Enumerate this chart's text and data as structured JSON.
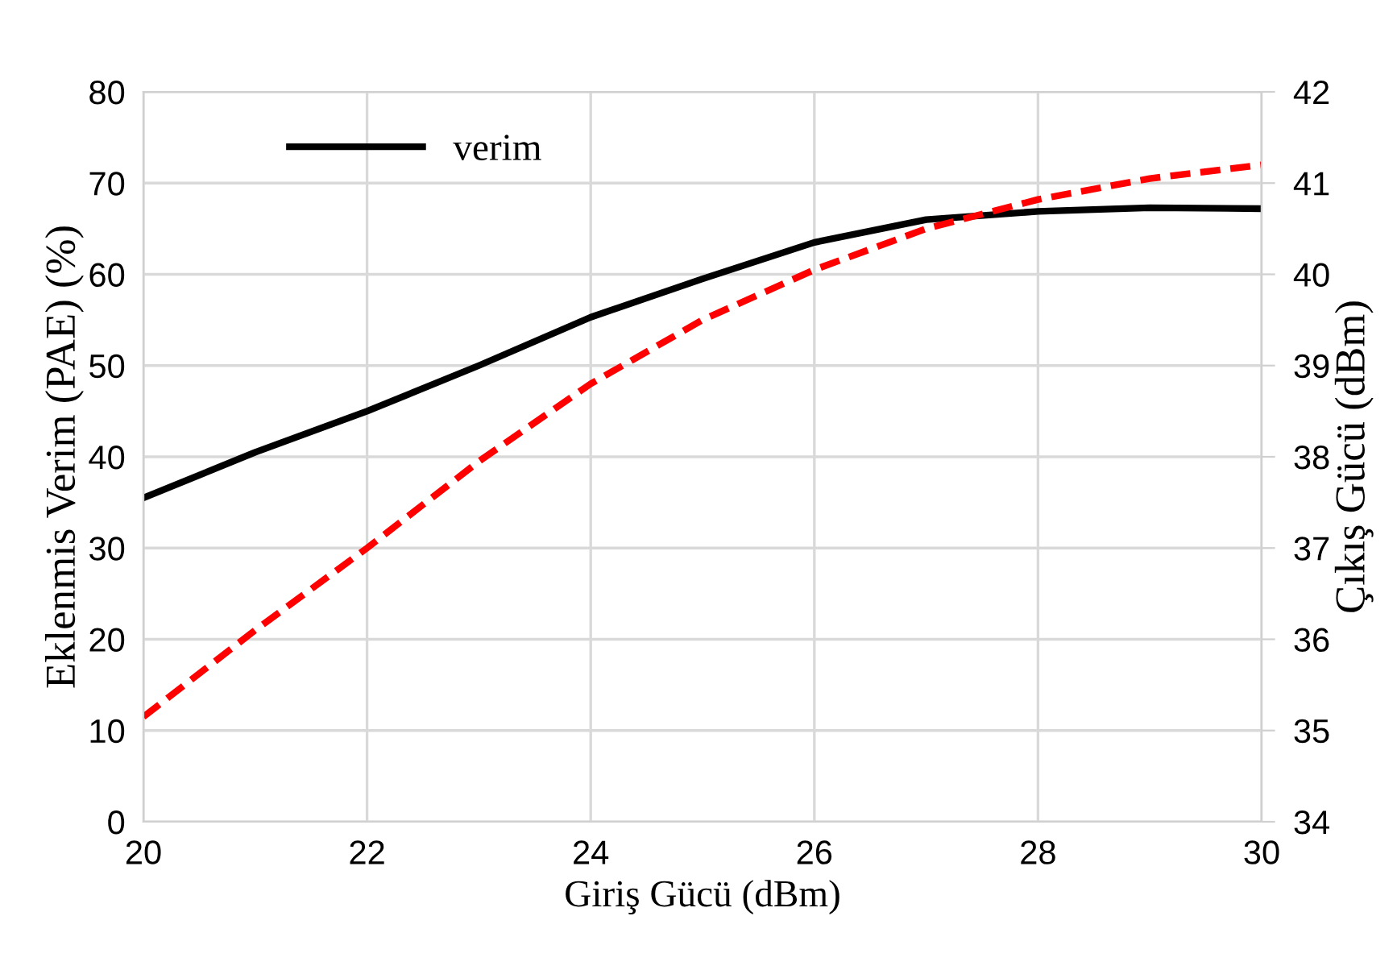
{
  "chart_data": {
    "type": "line",
    "xlabel": "Giriş Gücü (dBm)",
    "ylabel": "Eklenmis Verim (PAE) (%)",
    "y2label": "Çıkış Gücü (dBm)",
    "xlim": [
      20,
      30
    ],
    "xticks": [
      20,
      22,
      24,
      26,
      28,
      30
    ],
    "ylim": [
      0,
      80
    ],
    "yticks": [
      0,
      10,
      20,
      30,
      40,
      50,
      60,
      70,
      80
    ],
    "y2lim": [
      34,
      42
    ],
    "y2ticks": [
      34,
      35,
      36,
      37,
      38,
      39,
      40,
      41,
      42
    ],
    "grid": true,
    "legend": "top left",
    "series": [
      {
        "name": "verim",
        "color": "#000000",
        "line_style": "solid",
        "x": [
          20,
          21,
          22,
          23,
          24,
          25,
          26,
          27,
          28,
          29,
          30
        ],
        "values": [
          35.5,
          40.5,
          45,
          50,
          55.3,
          59.5,
          63.5,
          66,
          66.9,
          67.3,
          67.2
        ]
      },
      {
        "color": "#ff0000",
        "line_style": "dashed",
        "axis": "y2",
        "x": [
          20,
          21,
          22,
          23,
          24,
          25,
          26,
          27,
          28,
          29,
          30
        ],
        "values": [
          35.15,
          36.1,
          37.0,
          37.95,
          38.8,
          39.5,
          40.05,
          40.5,
          40.82,
          41.05,
          41.2
        ]
      }
    ]
  }
}
